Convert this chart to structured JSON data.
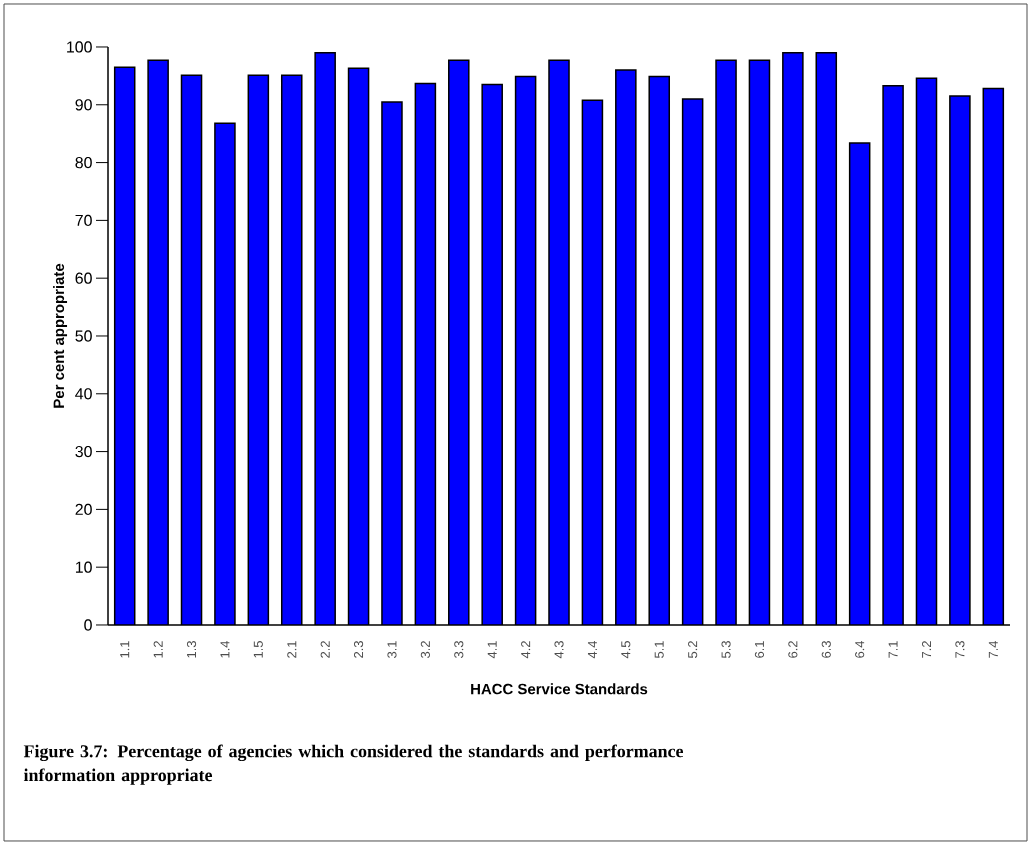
{
  "chart_data": {
    "type": "bar",
    "xlabel": "HACC Service Standards",
    "ylabel": "Per cent appropriate",
    "categories": [
      "1.1",
      "1.2",
      "1.3",
      "1.4",
      "1.5",
      "2.1",
      "2.2",
      "2.3",
      "3.1",
      "3.2",
      "3.3",
      "4.1",
      "4.2",
      "4.3",
      "4.4",
      "4.5",
      "5.1",
      "5.2",
      "5.3",
      "6.1",
      "6.2",
      "6.3",
      "6.4",
      "7.1",
      "7.2",
      "7.3",
      "7.4"
    ],
    "values": [
      96.5,
      97.7,
      95.1,
      86.8,
      95.1,
      95.1,
      99.0,
      96.3,
      90.5,
      93.7,
      97.7,
      93.5,
      94.9,
      97.7,
      90.8,
      96.0,
      94.9,
      91.0,
      97.7,
      97.7,
      99.0,
      99.0,
      83.4,
      93.3,
      94.6,
      91.5,
      92.8
    ],
    "color": "#0000ff",
    "ylim": [
      0,
      100
    ],
    "yticks": [
      0,
      10,
      20,
      30,
      40,
      50,
      60,
      70,
      80,
      90,
      100
    ],
    "annotations": [
      "Figure 3.7: Percentage of agencies which considered the standards and performance information appropriate"
    ]
  }
}
